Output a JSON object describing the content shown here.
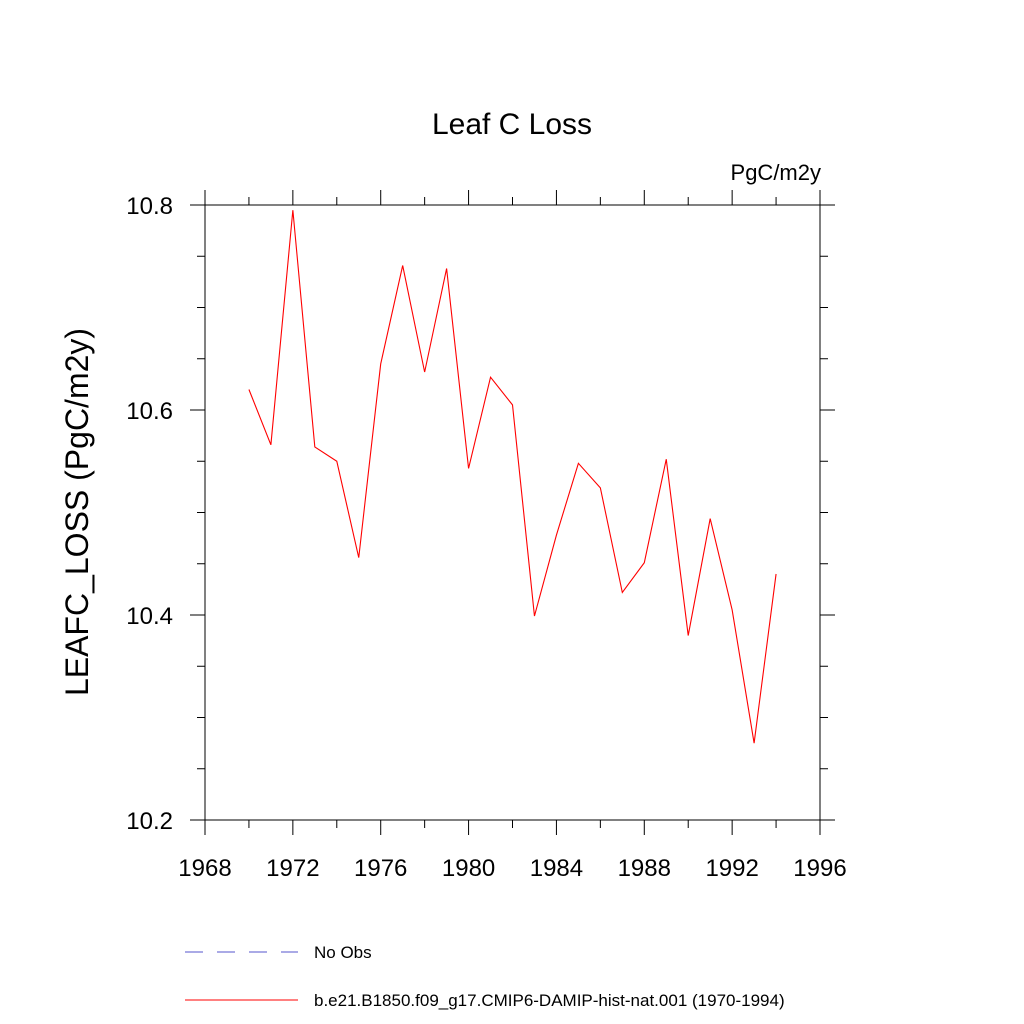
{
  "chart_data": {
    "type": "line",
    "title": "Leaf C Loss",
    "units_label": "PgC/m2y",
    "ylabel": "LEAFC_LOSS  (PgC/m2y)",
    "xlabel": "",
    "xlim": [
      1968,
      1996
    ],
    "ylim": [
      10.2,
      10.8
    ],
    "x_ticks": [
      1968,
      1972,
      1976,
      1980,
      1984,
      1988,
      1992,
      1996
    ],
    "x_tick_labels": [
      "1968",
      "1972",
      "1976",
      "1980",
      "1984",
      "1988",
      "1992",
      "1996"
    ],
    "y_ticks": [
      10.2,
      10.4,
      10.6,
      10.8
    ],
    "y_tick_labels": [
      "10.2",
      "10.4",
      "10.6",
      "10.8"
    ],
    "x_minor_step": 2,
    "y_minor_step": 0.05,
    "grid": false,
    "legend_placement": "bottom",
    "series": [
      {
        "name": "No Obs",
        "color": "#5555cc",
        "dash": true,
        "x": [],
        "values": []
      },
      {
        "name": "b.e21.B1850.f09_g17.CMIP6-DAMIP-hist-nat.001 (1970-1994)",
        "color": "#ff0000",
        "dash": false,
        "x": [
          1970,
          1971,
          1972,
          1973,
          1974,
          1975,
          1976,
          1977,
          1978,
          1979,
          1980,
          1981,
          1982,
          1983,
          1984,
          1985,
          1986,
          1987,
          1988,
          1989,
          1990,
          1991,
          1992,
          1993,
          1994
        ],
        "values": [
          10.62,
          10.566,
          10.795,
          10.564,
          10.55,
          10.456,
          10.645,
          10.741,
          10.637,
          10.738,
          10.543,
          10.632,
          10.605,
          10.399,
          10.478,
          10.548,
          10.524,
          10.422,
          10.451,
          10.552,
          10.38,
          10.494,
          10.405,
          10.275,
          10.44
        ]
      }
    ]
  }
}
